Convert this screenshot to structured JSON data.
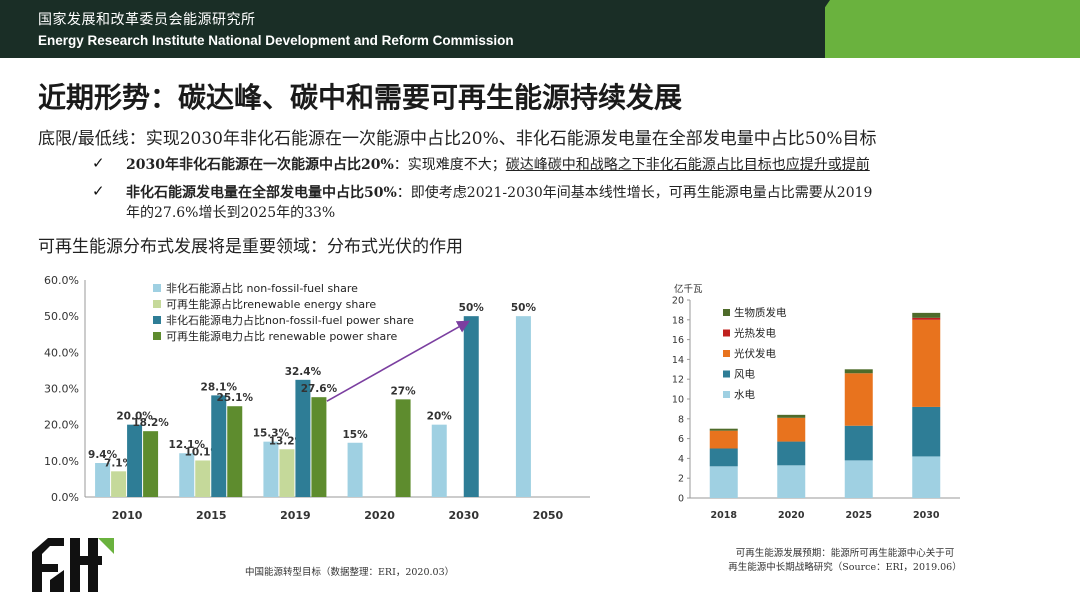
{
  "header": {
    "org_cn": "国家发展和改革委员会能源研究所",
    "org_en": "Energy Research Institute National Development and Reform Commission",
    "brand_color": "#1a2e26",
    "accent_color": "#6ab23e"
  },
  "slide": {
    "title": "近期形势：碳达峰、碳中和需要可再生能源持续发展",
    "line1": "底限/最低线：实现2030年非化石能源在一次能源中占比20%、非化石能源发电量在全部发电量中占比50%目标",
    "bullet1_bold": "2030年非化石能源在一次能源中占比20%",
    "bullet1_text": "：实现难度不大；",
    "bullet1_underline": "碳达峰碳中和战略之下非化石能源占比目标也应提升或提前",
    "bullet2_bold": "非化石能源发电量在全部发电量中占比50%",
    "bullet2_text": "：即使考虑2021-2030年间基本线性增长，可再生能源电量占比需要从2019",
    "bullet2_text_cont": "年的27.6%增长到2025年的33%",
    "sub_title": "可再生能源分布式发展将是重要领域：分布式光伏的作用",
    "check_mark": "✓",
    "caption_left": "中国能源转型目标（数据整理：ERI，2020.03）",
    "caption_right_1": "可再生能源发展预期：能源所可再生能源中心关于可",
    "caption_right_2": "再生能源中长期战略研究（Source：ERI，2019.06）"
  },
  "chart_data": [
    {
      "type": "bar",
      "categories": [
        "2010",
        "2015",
        "2019",
        "2020",
        "2030",
        "2050"
      ],
      "ylim": [
        0,
        60
      ],
      "yticks": [
        "0.0%",
        "10.0%",
        "20.0%",
        "30.0%",
        "40.0%",
        "50.0%",
        "60.0%"
      ],
      "series": [
        {
          "name": "非化石能源占比 non-fossil-fuel share",
          "color": "#9fd0e2",
          "values": [
            9.4,
            12.1,
            15.3,
            15,
            20,
            50
          ],
          "labels": [
            "9.4%",
            "12.1%",
            "15.3%",
            "15%",
            "20%",
            "50%"
          ]
        },
        {
          "name": "可再生能源占比renewable energy share",
          "color": "#c5d99a",
          "values": [
            7.1,
            10.1,
            13.2,
            null,
            null,
            null
          ],
          "labels": [
            "7.1%",
            "10.1%",
            "13.2%",
            "",
            "",
            ""
          ]
        },
        {
          "name": "非化石能源电力占比non-fossil-fuel power share",
          "color": "#2e7d96",
          "values": [
            20,
            28.1,
            32.4,
            null,
            50,
            null
          ],
          "labels": [
            "20.0%",
            "28.1%",
            "32.4%",
            "",
            "50%",
            ""
          ]
        },
        {
          "name": "可再生能源电力占比 renewable power share",
          "color": "#5e8c2e",
          "values": [
            18.2,
            25.1,
            27.6,
            27,
            null,
            null
          ],
          "labels": [
            "18.2%",
            "25.1%",
            "27.6%",
            "27%",
            "",
            ""
          ]
        }
      ],
      "annotation": "arrow from 2019 renewable power share to 2030 non-fossil-fuel power share",
      "arrow_color": "#7b3fa0",
      "grid": false,
      "legend": "top-left"
    },
    {
      "type": "bar",
      "stacked": true,
      "ylabel": "亿千瓦",
      "categories": [
        "2018",
        "2020",
        "2025",
        "2030"
      ],
      "ylim": [
        0,
        20
      ],
      "yticks": [
        "0",
        "2",
        "4",
        "6",
        "8",
        "10",
        "12",
        "14",
        "16",
        "18",
        "20"
      ],
      "series": [
        {
          "name": "水电",
          "color": "#9fd0e2",
          "values": [
            3.2,
            3.3,
            3.8,
            4.2
          ]
        },
        {
          "name": "风电",
          "color": "#2e7d96",
          "values": [
            1.8,
            2.4,
            3.5,
            5.0
          ]
        },
        {
          "name": "光伏发电",
          "color": "#e8731e",
          "values": [
            1.8,
            2.4,
            5.3,
            8.8
          ]
        },
        {
          "name": "光热发电",
          "color": "#c0201e",
          "values": [
            0.0,
            0.0,
            0.0,
            0.2
          ]
        },
        {
          "name": "生物质发电",
          "color": "#4e6b2a",
          "values": [
            0.2,
            0.3,
            0.4,
            0.5
          ]
        }
      ],
      "legend_order": [
        "生物质发电",
        "光热发电",
        "光伏发电",
        "风电",
        "水电"
      ],
      "grid": false,
      "legend": "top-left"
    }
  ]
}
